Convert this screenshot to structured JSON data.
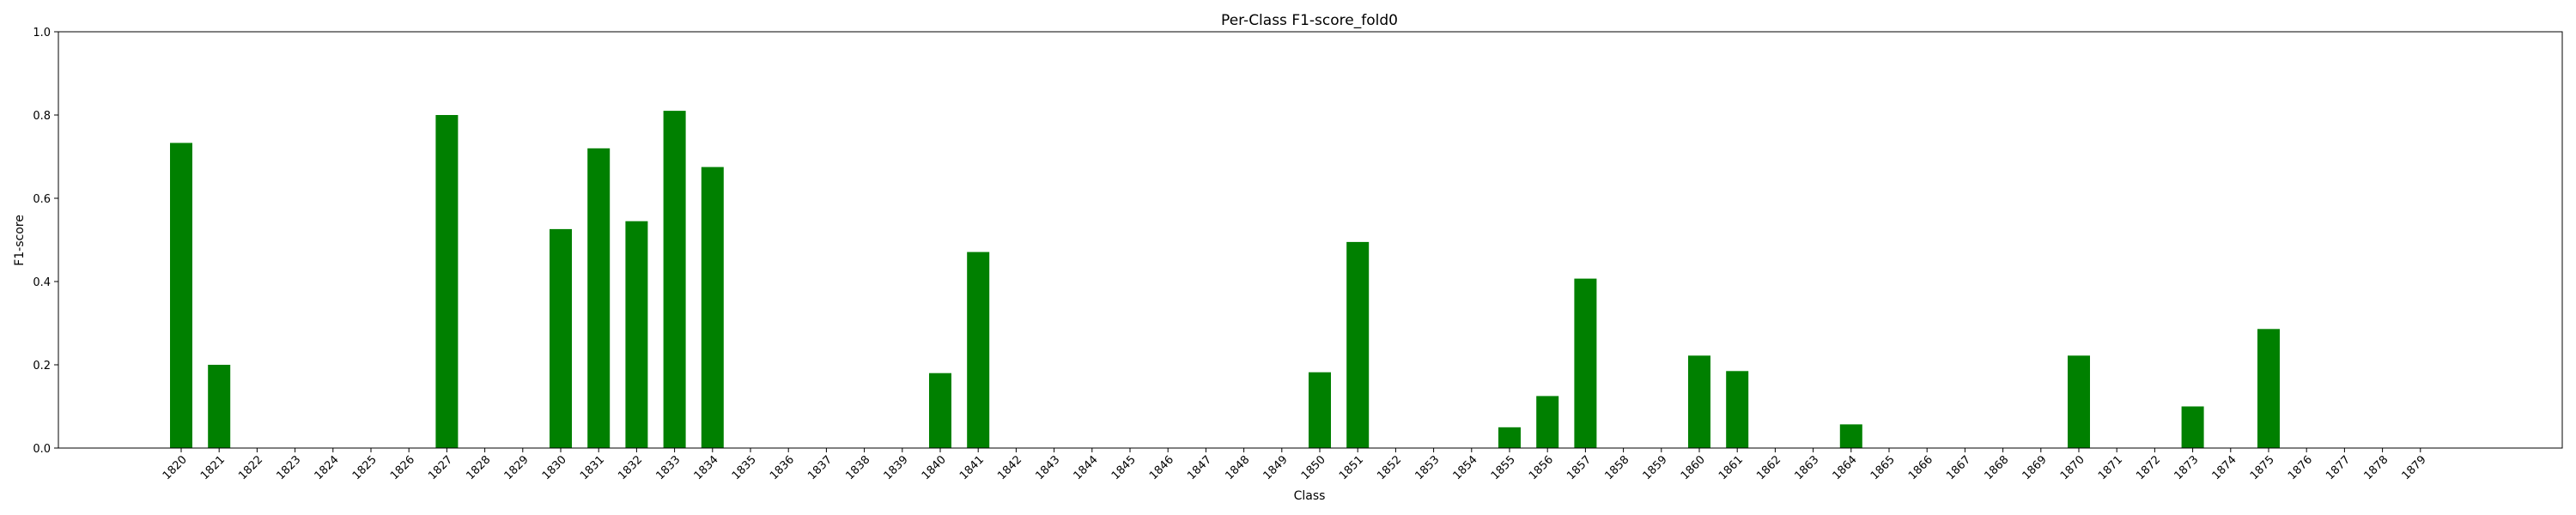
{
  "chart_data": {
    "type": "bar",
    "title": "Per-Class F1-score_fold0",
    "xlabel": "Class",
    "ylabel": "F1-score",
    "ylim": [
      0,
      1
    ],
    "yticks": [
      "0.0",
      "0.2",
      "0.4",
      "0.6",
      "0.8",
      "1.0"
    ],
    "grid": false,
    "bar_color": "#008000",
    "categories": [
      "1820",
      "1821",
      "1822",
      "1823",
      "1824",
      "1825",
      "1826",
      "1827",
      "1828",
      "1829",
      "1830",
      "1831",
      "1832",
      "1833",
      "1834",
      "1835",
      "1836",
      "1837",
      "1838",
      "1839",
      "1840",
      "1841",
      "1842",
      "1843",
      "1844",
      "1845",
      "1846",
      "1847",
      "1848",
      "1849",
      "1850",
      "1851",
      "1852",
      "1853",
      "1854",
      "1855",
      "1856",
      "1857",
      "1858",
      "1859",
      "1860",
      "1861",
      "1862",
      "1863",
      "1864",
      "1865",
      "1866",
      "1867",
      "1868",
      "1869",
      "1870",
      "1871",
      "1872",
      "1873",
      "1874",
      "1875",
      "1876",
      "1877",
      "1878",
      "1879"
    ],
    "values": [
      0.733,
      0.2,
      0,
      0,
      0,
      0,
      0,
      0.8,
      0,
      0,
      0.526,
      0.72,
      0.545,
      0.81,
      0.675,
      0,
      0,
      0,
      0,
      0,
      0.18,
      0.471,
      0,
      0,
      0,
      0,
      0,
      0,
      0,
      0,
      0.182,
      0.495,
      0,
      0,
      0,
      0.05,
      0.125,
      0.407,
      0,
      0,
      0.222,
      0.185,
      0,
      0,
      0.057,
      0,
      0,
      0,
      0,
      0,
      0.222,
      0,
      0,
      0.1,
      0,
      0.286,
      0,
      0,
      0,
      0
    ]
  }
}
